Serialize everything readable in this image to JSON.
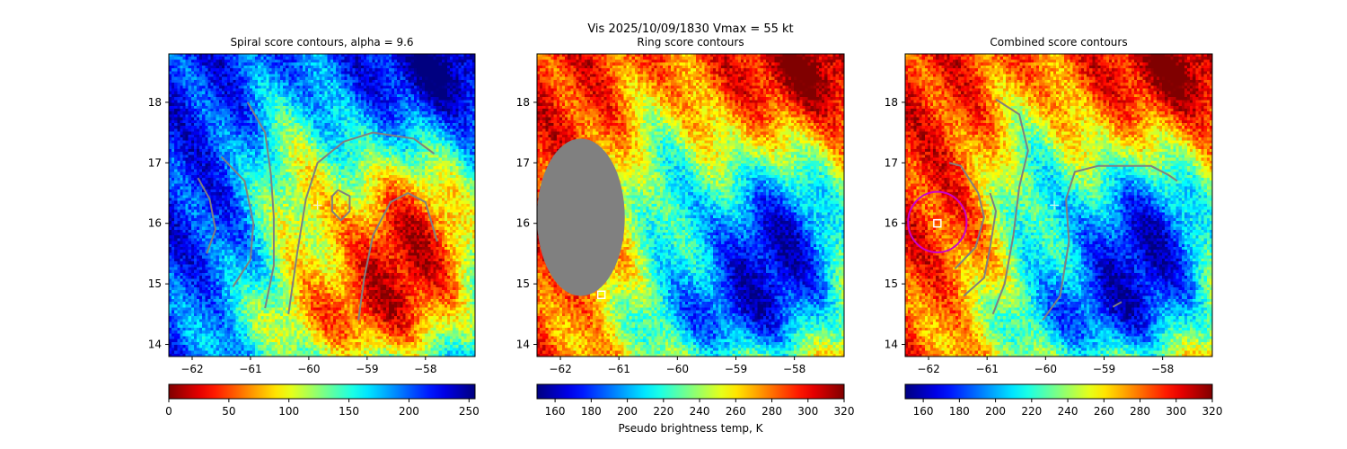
{
  "suptitle": "Vis  2025/10/09/1830    Vmax = 55 kt",
  "chart_data": [
    {
      "type": "heatmap",
      "title": "Spiral score contours, alpha =  9.6",
      "colormap": "jet_r",
      "xlim": [
        -62.4,
        -57.15
      ],
      "ylim": [
        13.8,
        18.8
      ],
      "xticks": [
        -62,
        -61,
        -60,
        -59,
        -58
      ],
      "yticks": [
        14,
        15,
        16,
        17,
        18
      ],
      "colorbar": {
        "min": 0,
        "max": 255,
        "ticks": [
          0,
          50,
          100,
          150,
          200,
          250
        ],
        "label": ""
      },
      "contours": [
        {
          "color": "#808080",
          "points": [
            [
              -61.9,
              16.75
            ],
            [
              -61.7,
              16.4
            ],
            [
              -61.6,
              15.9
            ],
            [
              -61.75,
              15.5
            ]
          ]
        },
        {
          "color": "#808080",
          "points": [
            [
              -61.5,
              17.1
            ],
            [
              -61.1,
              16.7
            ],
            [
              -60.95,
              16.0
            ],
            [
              -61.0,
              15.4
            ],
            [
              -61.3,
              14.95
            ]
          ]
        },
        {
          "color": "#808080",
          "points": [
            [
              -61.05,
              18.0
            ],
            [
              -60.75,
              17.5
            ],
            [
              -60.65,
              16.8
            ],
            [
              -60.6,
              16.1
            ],
            [
              -60.6,
              15.3
            ],
            [
              -60.75,
              14.6
            ]
          ]
        },
        {
          "color": "#808080",
          "points": [
            [
              -60.35,
              14.5
            ],
            [
              -60.2,
              15.5
            ],
            [
              -60.05,
              16.4
            ],
            [
              -59.85,
              17.0
            ],
            [
              -59.4,
              17.35
            ],
            [
              -58.9,
              17.5
            ],
            [
              -58.55,
              17.45
            ],
            [
              -58.2,
              17.4
            ],
            [
              -57.85,
              17.15
            ]
          ]
        },
        {
          "color": "#808080",
          "points": [
            [
              -59.5,
              16.55
            ],
            [
              -59.3,
              16.45
            ],
            [
              -59.3,
              16.2
            ],
            [
              -59.45,
              16.05
            ],
            [
              -59.6,
              16.2
            ],
            [
              -59.6,
              16.45
            ],
            [
              -59.5,
              16.55
            ]
          ]
        },
        {
          "color": "#808080",
          "points": [
            [
              -59.15,
              14.4
            ],
            [
              -59.05,
              15.1
            ],
            [
              -58.9,
              15.8
            ],
            [
              -58.6,
              16.35
            ],
            [
              -58.3,
              16.5
            ],
            [
              -58.0,
              16.35
            ],
            [
              -57.8,
              15.7
            ]
          ]
        }
      ],
      "markers": [
        {
          "kind": "plus",
          "x": -59.85,
          "y": 16.3,
          "color": "#eeeeee"
        }
      ]
    },
    {
      "type": "heatmap",
      "title": "Ring score contours",
      "colormap": "jet",
      "xlim": [
        -62.4,
        -57.15
      ],
      "ylim": [
        13.8,
        18.8
      ],
      "xticks": [
        -62,
        -61,
        -60,
        -59,
        -58
      ],
      "yticks": [
        14,
        15,
        16,
        17,
        18
      ],
      "colorbar": {
        "min": 150,
        "max": 320,
        "ticks": [
          160,
          180,
          200,
          220,
          240,
          260,
          280,
          300,
          320
        ],
        "label": "Pseudo brightness temp, K"
      },
      "masked_region": {
        "color": "#808080",
        "cx": -61.65,
        "cy": 16.1,
        "rx": 0.75,
        "ry": 1.3
      },
      "contours": [],
      "markers": [
        {
          "kind": "square",
          "x": -61.3,
          "y": 14.82,
          "color": "#ffffff"
        }
      ]
    },
    {
      "type": "heatmap",
      "title": "Combined score contours",
      "colormap": "jet",
      "xlim": [
        -62.4,
        -57.15
      ],
      "ylim": [
        13.8,
        18.8
      ],
      "xticks": [
        -62,
        -61,
        -60,
        -59,
        -58
      ],
      "yticks": [
        14,
        15,
        16,
        17,
        18
      ],
      "colorbar": {
        "min": 150,
        "max": 320,
        "ticks": [
          160,
          180,
          200,
          220,
          240,
          260,
          280,
          300,
          320
        ],
        "label": ""
      },
      "contours": [
        {
          "color": "#808080",
          "points": [
            [
              -61.55,
              15.25
            ],
            [
              -61.2,
              15.6
            ],
            [
              -61.05,
              16.1
            ],
            [
              -61.15,
              16.5
            ],
            [
              -61.45,
              16.95
            ],
            [
              -61.65,
              17.0
            ]
          ]
        },
        {
          "color": "#808080",
          "points": [
            [
              -61.4,
              14.8
            ],
            [
              -61.05,
              15.1
            ],
            [
              -60.95,
              15.6
            ],
            [
              -60.85,
              16.2
            ],
            [
              -60.95,
              16.5
            ]
          ]
        },
        {
          "color": "#808080",
          "points": [
            [
              -60.85,
              18.05
            ],
            [
              -60.45,
              17.8
            ],
            [
              -60.3,
              17.2
            ],
            [
              -60.45,
              16.6
            ],
            [
              -60.55,
              15.8
            ],
            [
              -60.7,
              15.0
            ],
            [
              -60.9,
              14.5
            ]
          ]
        },
        {
          "color": "#808080",
          "points": [
            [
              -60.05,
              14.4
            ],
            [
              -59.75,
              14.8
            ],
            [
              -59.6,
              15.7
            ],
            [
              -59.65,
              16.4
            ],
            [
              -59.5,
              16.85
            ],
            [
              -59.1,
              16.95
            ],
            [
              -58.6,
              16.95
            ],
            [
              -58.2,
              16.95
            ],
            [
              -57.9,
              16.8
            ],
            [
              -57.75,
              16.7
            ]
          ]
        },
        {
          "color": "#808080",
          "points": [
            [
              -58.85,
              14.62
            ],
            [
              -58.7,
              14.7
            ]
          ]
        }
      ],
      "ring": {
        "color": "#cc00cc",
        "cx": -61.85,
        "cy": 16.02,
        "r": 0.5
      },
      "markers": [
        {
          "kind": "square",
          "x": -61.85,
          "y": 16.0,
          "color": "#ffffff"
        },
        {
          "kind": "plus",
          "x": -59.85,
          "y": 16.3,
          "color": "#eeeeee"
        }
      ]
    }
  ]
}
